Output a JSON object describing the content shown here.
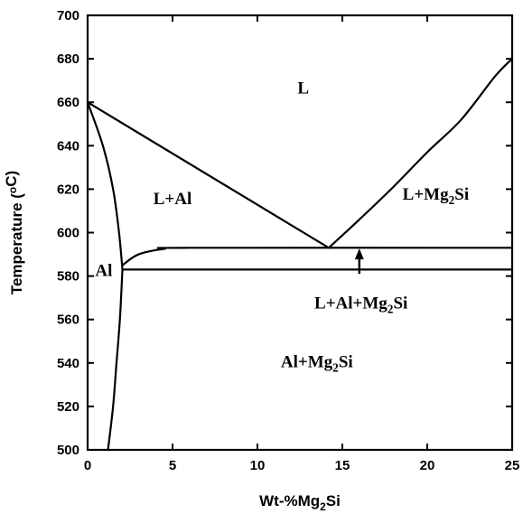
{
  "chart_data": {
    "type": "phase-diagram",
    "title": "",
    "xlabel": "Wt-%Mg2Si",
    "ylabel": "Temperature (°C)",
    "xlim": [
      0,
      25
    ],
    "ylim": [
      500,
      700
    ],
    "xticks": [
      0,
      5,
      10,
      15,
      20,
      25
    ],
    "yticks": [
      500,
      520,
      540,
      560,
      580,
      600,
      620,
      640,
      660,
      680,
      700
    ],
    "grid": false,
    "lines": [
      {
        "id": "liquidus-al",
        "points": [
          [
            0,
            660
          ],
          [
            14.2,
            593
          ]
        ]
      },
      {
        "id": "liquidus-mg2si",
        "points": [
          [
            14.2,
            593
          ],
          [
            16,
            606
          ],
          [
            18,
            621
          ],
          [
            20,
            637
          ],
          [
            22,
            652
          ],
          [
            24,
            672
          ],
          [
            25,
            680
          ]
        ]
      },
      {
        "id": "solidus",
        "points": [
          [
            0,
            660
          ],
          [
            0.9,
            640
          ],
          [
            1.5,
            620
          ],
          [
            1.85,
            600
          ],
          [
            2.05,
            583
          ]
        ]
      },
      {
        "id": "solvus",
        "points": [
          [
            2.05,
            583
          ],
          [
            1.9,
            560
          ],
          [
            1.7,
            540
          ],
          [
            1.5,
            520
          ],
          [
            1.2,
            500
          ]
        ]
      },
      {
        "id": "upper-boundary",
        "points": [
          [
            2.05,
            585
          ],
          [
            3,
            590
          ],
          [
            4.5,
            592.5
          ],
          [
            6,
            593
          ],
          [
            25,
            593
          ]
        ]
      },
      {
        "id": "eutectic-isotherm",
        "points": [
          [
            2.05,
            583
          ],
          [
            25,
            583
          ]
        ]
      }
    ],
    "arrow": {
      "from": [
        16,
        581
      ],
      "to": [
        16,
        591
      ]
    },
    "annotations": [
      {
        "text": "L",
        "x": 12.7,
        "y": 667
      },
      {
        "text": "L+Al",
        "x": 5.0,
        "y": 616
      },
      {
        "text": "L+Mg2Si",
        "x": 20.5,
        "y": 618
      },
      {
        "text": "Al",
        "x": 0.95,
        "y": 583
      },
      {
        "text": "L+Al+Mg2Si",
        "x": 16.1,
        "y": 568
      },
      {
        "text": "Al+Mg2Si",
        "x": 13.5,
        "y": 541
      }
    ]
  }
}
